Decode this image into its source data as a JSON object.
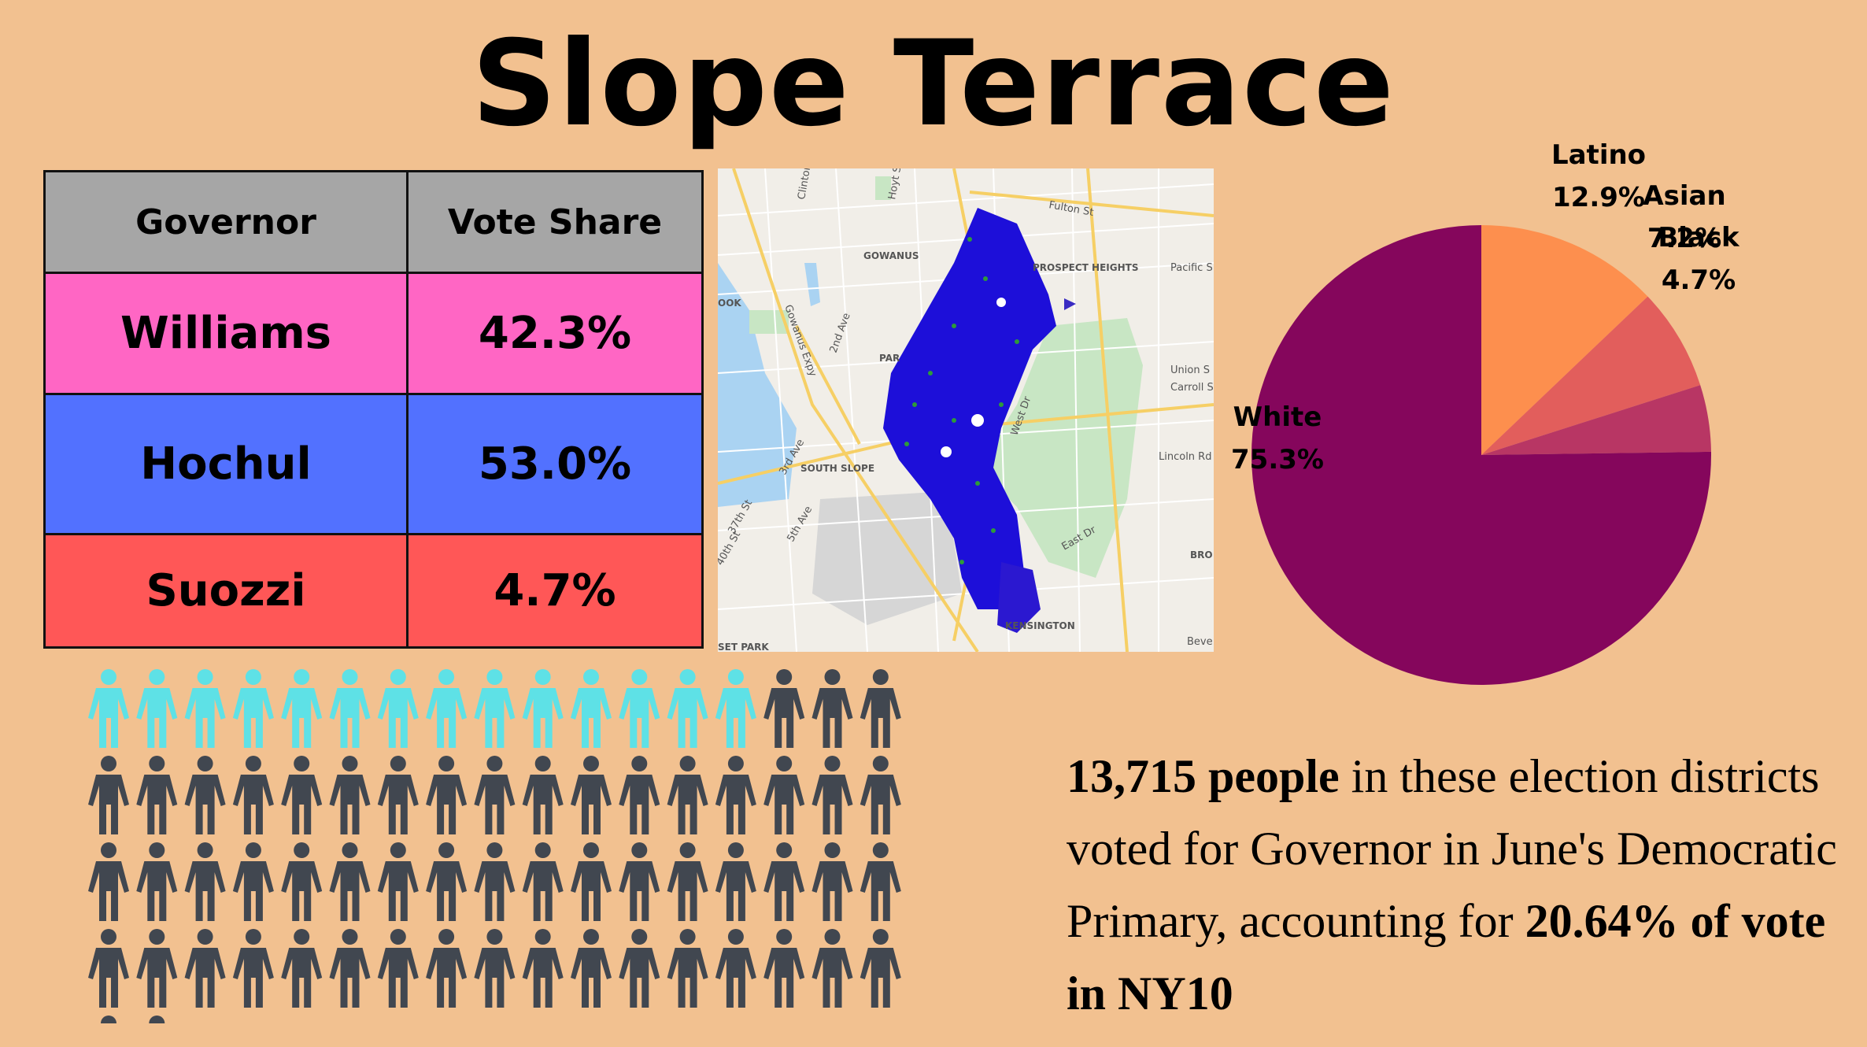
{
  "title": "Slope Terrace",
  "table": {
    "headers": [
      "Governor",
      "Vote Share"
    ],
    "rows": [
      {
        "name": "Williams",
        "share": "42.3%",
        "color": "#ff66c4"
      },
      {
        "name": "Hochul",
        "share": "53.0%",
        "color": "#5271ff"
      },
      {
        "name": "Suozzi",
        "share": "4.7%",
        "color": "#ff5757"
      }
    ]
  },
  "map": {
    "labels": [
      "Clinton St",
      "Hoyt St",
      "Fulton St",
      "GOWANUS",
      "PROSPECT HEIGHTS",
      "Pacific S",
      "OOK",
      "Gowanus Expy",
      "2nd Ave",
      "PAR",
      "Union S",
      "Carroll S",
      "West Dr",
      "3rd Ave",
      "SOUTH SLOPE",
      "Lincoln Rd",
      "5th Ave",
      "37th St",
      "40th St",
      "East Dr",
      "BRO",
      "KENSINGTON",
      "SET PARK",
      "Beve"
    ]
  },
  "chart_data": {
    "type": "pie",
    "slices": [
      {
        "label": "Latino",
        "value": 12.9,
        "text": "12.9%",
        "color": "#fd8f4e"
      },
      {
        "label": "Asian",
        "value": 7.2,
        "text": "7.2%",
        "color": "#e25e5c"
      },
      {
        "label": "Black",
        "value": 4.7,
        "text": "4.7%",
        "color": "#b83664"
      },
      {
        "label": "White",
        "value": 75.3,
        "text": "75.3%",
        "color": "#85065c"
      }
    ]
  },
  "people_chart": {
    "highlighted": 14,
    "total": 70,
    "highlight_color": "#5ee1e6",
    "base_color": "#414750"
  },
  "blurb": {
    "count": "13,715 people",
    "text1": " in these election districts voted for Governor in June's Democratic Primary, accounting for ",
    "share": "20.64% of vote in NY10"
  }
}
